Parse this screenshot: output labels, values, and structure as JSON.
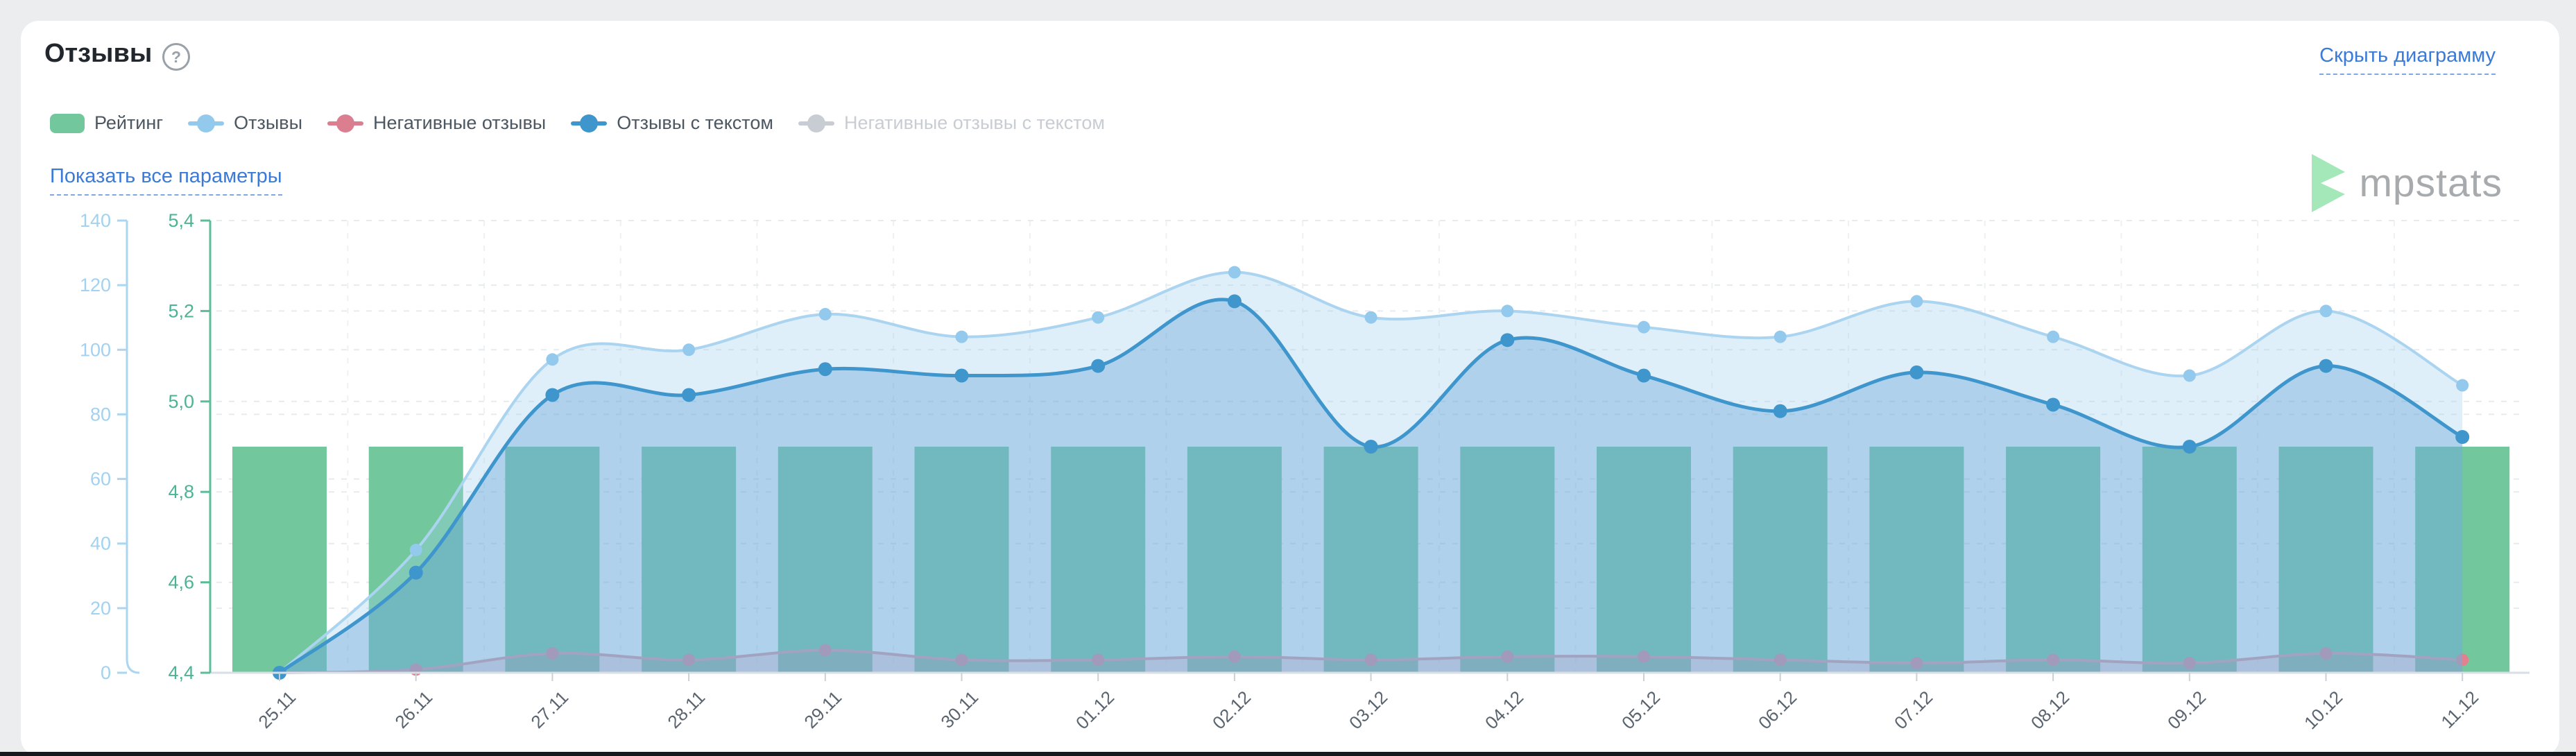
{
  "header": {
    "title": "Отзывы",
    "help_icon": "?",
    "hide_link": "Скрыть диаграмму",
    "show_all_link": "Показать все параметры"
  },
  "legend": {
    "items": [
      {
        "label": "Рейтинг",
        "marker": "square",
        "color": "#72c89c",
        "disabled": false
      },
      {
        "label": "Отзывы",
        "marker": "line-dot",
        "color": "#93c9ec",
        "disabled": false
      },
      {
        "label": "Негативные отзывы",
        "marker": "line-dot",
        "color": "#db7f90",
        "disabled": false
      },
      {
        "label": "Отзывы с текстом",
        "marker": "line-dot",
        "color": "#3e96cd",
        "disabled": false
      },
      {
        "label": "Негативные отзывы с текстом",
        "marker": "line-dot",
        "color": "#c8cdd3",
        "disabled": true
      }
    ]
  },
  "watermark": {
    "text": "mpstats",
    "triangle_color": "#a4e8ba",
    "text_color": "#a8abae"
  },
  "colors": {
    "link_blue": "#3b7ad7",
    "card_background": "#ffffff",
    "page_background": "#ebedef",
    "left_axis": "#a2d2ef",
    "right_axis": "#4db394"
  },
  "chart_data": {
    "type": "composite",
    "categories": [
      "25.11",
      "26.11",
      "27.11",
      "28.11",
      "29.11",
      "30.11",
      "01.12",
      "02.12",
      "03.12",
      "04.12",
      "05.12",
      "06.12",
      "07.12",
      "08.12",
      "09.12",
      "10.12",
      "11.12"
    ],
    "series": [
      {
        "name": "Рейтинг",
        "type": "bar",
        "axis": "right",
        "color": "#72c89c",
        "values": [
          4.9,
          4.9,
          4.9,
          4.9,
          4.9,
          4.9,
          4.9,
          4.9,
          4.9,
          4.9,
          4.9,
          4.9,
          4.9,
          4.9,
          4.9,
          4.9,
          4.9
        ]
      },
      {
        "name": "Негативные отзывы",
        "type": "line",
        "axis": "left",
        "line_color": "#e2929f",
        "dot_color": "#e2808f",
        "fill_color": "rgba(224,128,143,0.30)",
        "values": [
          0,
          1,
          6,
          4,
          7,
          4,
          4,
          5,
          4,
          5,
          5,
          4,
          3,
          4,
          3,
          6,
          4
        ]
      },
      {
        "name": "Отзывы",
        "type": "line",
        "axis": "left",
        "line_color": "#aad4ef",
        "dot_color": "#93c9ec",
        "fill_color": "rgba(157,207,238,0.33)",
        "values": [
          0,
          38,
          97,
          100,
          111,
          104,
          110,
          124,
          110,
          112,
          107,
          104,
          115,
          104,
          92,
          112,
          89
        ]
      },
      {
        "name": "Отзывы с текстом",
        "type": "line",
        "axis": "left",
        "line_color": "#3e96cd",
        "dot_color": "#3e96cd",
        "fill_color": "rgba(87,156,208,0.35)",
        "values": [
          0,
          31,
          86,
          86,
          94,
          92,
          95,
          115,
          70,
          103,
          92,
          81,
          93,
          83,
          70,
          95,
          73
        ]
      }
    ],
    "y_left": {
      "color": "#a2d2ef",
      "ticks": [
        0,
        20,
        40,
        60,
        80,
        100,
        120,
        140
      ],
      "range": [
        0,
        140
      ]
    },
    "y_right": {
      "color": "#4db394",
      "tick_labels": [
        "4,4",
        "4,6",
        "4,8",
        "5,0",
        "5,2",
        "5,4"
      ],
      "tick_values": [
        4.4,
        4.6,
        4.8,
        5.0,
        5.2,
        5.4
      ],
      "range": [
        4.4,
        5.4
      ]
    },
    "x_axis": {
      "label_color": "#5a646f"
    },
    "grid": true,
    "legend_position": "top"
  }
}
